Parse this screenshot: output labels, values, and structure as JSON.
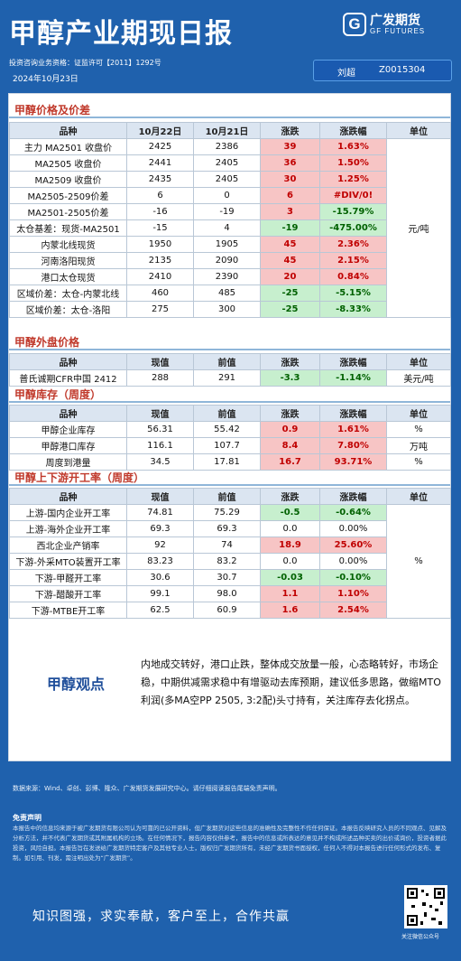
{
  "header": {
    "title": "甲醇产业期现日报",
    "logo_cn": "广发期货",
    "logo_en": "GF FUTURES",
    "license": "投资咨询业务资格：证监许可【2011】1292号",
    "date": "2024年10月23日",
    "author_name": "刘超",
    "author_id": "Z0015304"
  },
  "sections": {
    "price": {
      "title": "甲醇价格及价差"
    },
    "outer": {
      "title": "甲醇外盘价格"
    },
    "stock": {
      "title": "甲醇库存（周度）"
    },
    "chain": {
      "title": "甲醇上下游开工率（周度）"
    }
  },
  "price_table": {
    "headers": [
      "品种",
      "10月22日",
      "10月21日",
      "涨跌",
      "涨跌幅",
      "单位"
    ],
    "unit": "元/吨",
    "rows": [
      {
        "name": "主力 MA2501 收盘价",
        "a": "2425",
        "b": "2386",
        "chg": "39",
        "pct": "1.63%",
        "dir": "up"
      },
      {
        "name": "MA2505 收盘价",
        "a": "2441",
        "b": "2405",
        "chg": "36",
        "pct": "1.50%",
        "dir": "up"
      },
      {
        "name": "MA2509 收盘价",
        "a": "2435",
        "b": "2405",
        "chg": "30",
        "pct": "1.25%",
        "dir": "up"
      },
      {
        "name": "MA2505-2509价差",
        "a": "6",
        "b": "0",
        "chg": "6",
        "pct": "#DIV/0!",
        "dir": "up"
      },
      {
        "name": "MA2501-2505价差",
        "a": "-16",
        "b": "-19",
        "chg": "3",
        "pct": "-15.79%",
        "dir": "mixed"
      },
      {
        "name": "太仓基差：现货-MA2501",
        "a": "-15",
        "b": "4",
        "chg": "-19",
        "pct": "-475.00%",
        "dir": "dn"
      },
      {
        "name": "内蒙北线现货",
        "a": "1950",
        "b": "1905",
        "chg": "45",
        "pct": "2.36%",
        "dir": "up"
      },
      {
        "name": "河南洛阳现货",
        "a": "2135",
        "b": "2090",
        "chg": "45",
        "pct": "2.15%",
        "dir": "up"
      },
      {
        "name": "港口太仓现货",
        "a": "2410",
        "b": "2390",
        "chg": "20",
        "pct": "0.84%",
        "dir": "up"
      },
      {
        "name": "区域价差：太仓-内蒙北线",
        "a": "460",
        "b": "485",
        "chg": "-25",
        "pct": "-5.15%",
        "dir": "dn"
      },
      {
        "name": "区域价差：太仓-洛阳",
        "a": "275",
        "b": "300",
        "chg": "-25",
        "pct": "-8.33%",
        "dir": "dn"
      }
    ]
  },
  "outer_table": {
    "headers": [
      "品种",
      "现值",
      "前值",
      "涨跌",
      "涨跌幅",
      "单位"
    ],
    "rows": [
      {
        "name": "普氏诚期CFR中国 2412",
        "a": "288",
        "b": "291",
        "chg": "-3.3",
        "pct": "-1.14%",
        "dir": "dn",
        "unit": "美元/吨"
      }
    ]
  },
  "stock_table": {
    "headers": [
      "品种",
      "现值",
      "前值",
      "涨跌",
      "涨跌幅",
      "单位"
    ],
    "rows": [
      {
        "name": "甲醇企业库存",
        "a": "56.31",
        "b": "55.42",
        "chg": "0.9",
        "pct": "1.61%",
        "dir": "up",
        "unit": "%"
      },
      {
        "name": "甲醇港口库存",
        "a": "116.1",
        "b": "107.7",
        "chg": "8.4",
        "pct": "7.80%",
        "dir": "up",
        "unit": "万吨"
      },
      {
        "name": "周度到港量",
        "a": "34.5",
        "b": "17.81",
        "chg": "16.7",
        "pct": "93.71%",
        "dir": "up",
        "unit": "%"
      }
    ]
  },
  "chain_table": {
    "headers": [
      "品种",
      "现值",
      "前值",
      "涨跌",
      "涨跌幅",
      "单位"
    ],
    "unit": "%",
    "rows": [
      {
        "name": "上游-国内企业开工率",
        "a": "74.81",
        "b": "75.29",
        "chg": "-0.5",
        "pct": "-0.64%",
        "dir": "dn"
      },
      {
        "name": "上游-海外企业开工率",
        "a": "69.3",
        "b": "69.3",
        "chg": "0.0",
        "pct": "0.00%",
        "dir": "flat"
      },
      {
        "name": "西北企业产销率",
        "a": "92",
        "b": "74",
        "chg": "18.9",
        "pct": "25.60%",
        "dir": "up"
      },
      {
        "name": "下游-外采MTO装置开工率",
        "a": "83.23",
        "b": "83.2",
        "chg": "0.0",
        "pct": "0.00%",
        "dir": "flat"
      },
      {
        "name": "下游-甲醛开工率",
        "a": "30.6",
        "b": "30.7",
        "chg": "-0.03",
        "pct": "-0.10%",
        "dir": "dn"
      },
      {
        "name": "下游-醋酸开工率",
        "a": "99.1",
        "b": "98.0",
        "chg": "1.1",
        "pct": "1.10%",
        "dir": "up"
      },
      {
        "name": "下游-MTBE开工率",
        "a": "62.5",
        "b": "60.9",
        "chg": "1.6",
        "pct": "2.54%",
        "dir": "up"
      }
    ]
  },
  "view": {
    "label": "甲醇观点",
    "text": "内地成交转好，港口止跌，整体成交放量一般，心态略转好，市场企稳，中期供减需求稳中有增驱动去库预期，建议低多思路，做缩MTO利润(多MA空PP 2505, 3:2配)头寸持有，关注库存去化拐点。"
  },
  "footer": {
    "source": "数据来源：Wind、卓创、彭博、隆众、广发期货发展研究中心。请仔细阅读报告尾端免责声明。",
    "disclaimer_title": "免责声明",
    "disclaimer": "本报告中的信息均来源于被广发期货有限公司认为可靠的已公开资料，但广发期货对这些信息的准确性及完整性不作任何保证。本报告反映研究人员的不同观点、见解及分析方法，并不代表广发期货或其附属机构的立场。在任何情况下，报告内容仅供参考，报告中的信息或所表达的意见并不构成所述品种买卖的出价或询价，投资者据此投资，风险自担。本报告旨在发送给广发期货特定客户及其他专业人士，版权归广发期货所有，未经广发期货书面授权，任何人不得对本报告进行任何形式的发布、复制。如引用、刊发，需注明出处为“广发期货”。",
    "slogan": "知识图强，求实奉献，客户至上，合作共赢",
    "qr_caption": "关注微信公众号"
  },
  "colors": {
    "background": "#1f61ad",
    "up_fill": "#f7c5c5",
    "up_text": "#c00000",
    "down_fill": "#c7efce",
    "down_text": "#006100",
    "section_title": "#c0392b"
  }
}
